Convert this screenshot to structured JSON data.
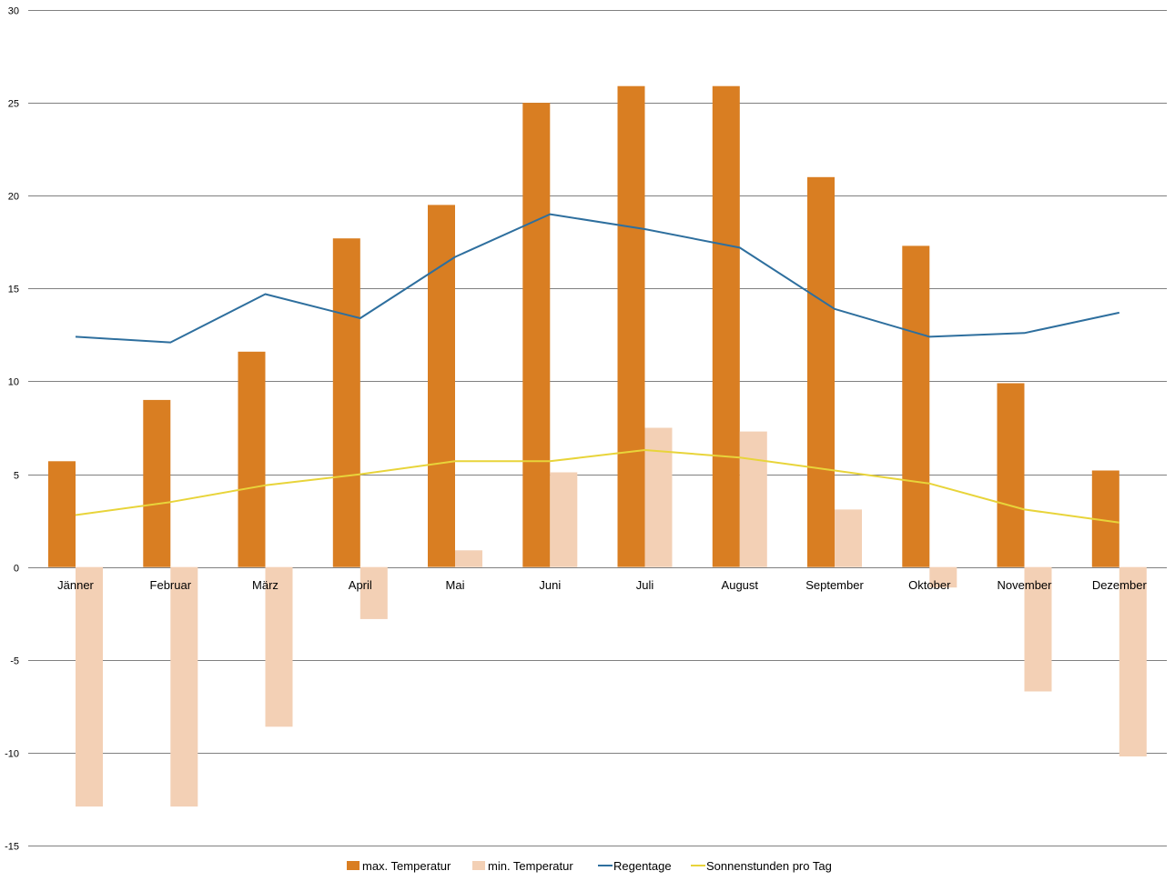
{
  "chart_data": {
    "type": "bar",
    "categories": [
      "Jänner",
      "Februar",
      "März",
      "April",
      "Mai",
      "Juni",
      "Juli",
      "August",
      "September",
      "Oktober",
      "November",
      "Dezember"
    ],
    "ylim": [
      -15,
      30
    ],
    "yticks": [
      30,
      25,
      20,
      15,
      10,
      5,
      0,
      -5,
      -10,
      -15
    ],
    "grid": true,
    "legend_position": "bottom",
    "series": [
      {
        "name": "max. Temperatur",
        "kind": "bar",
        "color": "#D97E22",
        "values": [
          5.7,
          9.0,
          11.6,
          17.7,
          19.5,
          25.0,
          25.9,
          25.9,
          21.0,
          17.3,
          9.9,
          5.2
        ]
      },
      {
        "name": "min. Temperatur",
        "kind": "bar",
        "color": "#F3D0B5",
        "values": [
          -12.9,
          -12.9,
          -8.6,
          -2.8,
          0.9,
          5.1,
          7.5,
          7.3,
          3.1,
          -1.1,
          -6.7,
          -10.2
        ]
      },
      {
        "name": "Regentage",
        "kind": "line",
        "color": "#2E6F9E",
        "values": [
          12.4,
          12.1,
          14.7,
          13.4,
          16.7,
          19.0,
          18.2,
          17.2,
          13.9,
          12.4,
          12.6,
          13.7
        ]
      },
      {
        "name": "Sonnenstunden pro Tag",
        "kind": "line",
        "color": "#E8D43A",
        "values": [
          2.8,
          3.5,
          4.4,
          5.0,
          5.7,
          5.7,
          6.3,
          5.9,
          5.2,
          4.5,
          3.1,
          2.4
        ]
      }
    ]
  }
}
